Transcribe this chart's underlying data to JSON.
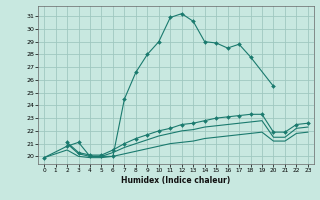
{
  "xlabel": "Humidex (Indice chaleur)",
  "bg_color": "#c8e8e0",
  "line_color": "#1a7a6e",
  "grid_color": "#a0c8c0",
  "xlim": [
    -0.5,
    23.5
  ],
  "ylim": [
    19.4,
    31.8
  ],
  "xticks": [
    0,
    1,
    2,
    3,
    4,
    5,
    6,
    7,
    8,
    9,
    10,
    11,
    12,
    13,
    14,
    15,
    16,
    17,
    18,
    19,
    20,
    21,
    22,
    23
  ],
  "yticks": [
    20,
    21,
    22,
    23,
    24,
    25,
    26,
    27,
    28,
    29,
    30,
    31
  ],
  "line1_x": [
    0,
    2,
    3,
    4,
    5,
    6,
    7,
    8,
    9,
    10,
    11,
    12,
    13,
    14,
    15,
    16,
    17,
    18,
    20
  ],
  "line1_y": [
    19.9,
    20.8,
    21.1,
    20.0,
    20.0,
    20.0,
    24.5,
    26.6,
    28.0,
    29.0,
    30.9,
    31.2,
    30.6,
    29.0,
    28.9,
    28.5,
    28.8,
    27.8,
    25.5
  ],
  "line2_x": [
    2,
    3,
    4,
    5,
    6,
    7,
    8,
    9,
    10,
    11,
    12,
    13,
    14,
    15,
    16,
    17,
    18,
    19,
    20,
    21,
    22,
    23
  ],
  "line2_y": [
    21.1,
    20.3,
    20.1,
    20.1,
    20.5,
    21.0,
    21.4,
    21.7,
    22.0,
    22.2,
    22.5,
    22.6,
    22.8,
    23.0,
    23.1,
    23.2,
    23.3,
    23.3,
    21.9,
    21.9,
    22.5,
    22.6
  ],
  "line3_x": [
    2,
    3,
    4,
    5,
    6,
    7,
    8,
    9,
    10,
    11,
    12,
    13,
    14,
    15,
    16,
    17,
    18,
    19,
    20,
    21,
    22,
    23
  ],
  "line3_y": [
    21.0,
    20.2,
    20.0,
    20.0,
    20.3,
    20.7,
    21.0,
    21.3,
    21.6,
    21.8,
    22.0,
    22.1,
    22.3,
    22.4,
    22.5,
    22.6,
    22.7,
    22.8,
    21.5,
    21.5,
    22.2,
    22.3
  ],
  "line4_x": [
    0,
    2,
    3,
    4,
    5,
    6,
    7,
    8,
    9,
    10,
    11,
    12,
    13,
    14,
    15,
    16,
    17,
    18,
    19,
    20,
    21,
    22,
    23
  ],
  "line4_y": [
    19.9,
    20.5,
    20.0,
    19.9,
    19.9,
    20.0,
    20.2,
    20.4,
    20.6,
    20.8,
    21.0,
    21.1,
    21.2,
    21.4,
    21.5,
    21.6,
    21.7,
    21.8,
    21.9,
    21.2,
    21.2,
    21.8,
    21.9
  ]
}
